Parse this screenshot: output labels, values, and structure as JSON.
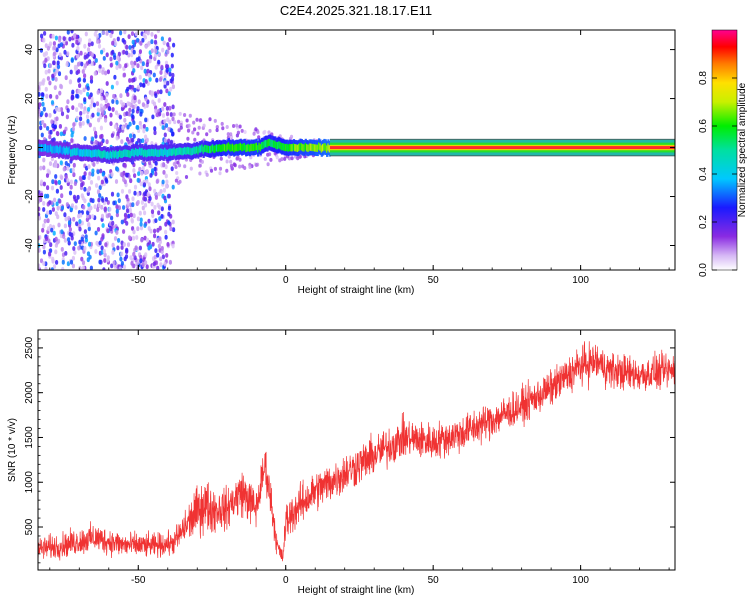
{
  "title": "C2E4.2025.321.18.17.E11",
  "chart_data": [
    {
      "type": "heatmap",
      "xlabel": "Height of straight line (km)",
      "ylabel": "Frequency (Hz)",
      "xlim": [
        -84,
        132
      ],
      "ylim": [
        -50,
        48
      ],
      "xticks": [
        -50,
        0,
        50,
        100
      ],
      "yticks": [
        -40,
        -20,
        0,
        20,
        40
      ],
      "colorbar": {
        "label": "Normalized spectral amplitude",
        "range": [
          0,
          1
        ],
        "ticks": [
          0.0,
          0.2,
          0.4,
          0.6,
          0.8
        ],
        "tick_labels": [
          "0.0",
          "0.2",
          "0.4",
          "0.6",
          "0.8"
        ]
      },
      "carrier": {
        "description_free": true,
        "x_start": 15,
        "x_end": 132,
        "frequency": 0,
        "amplitude": 0.82
      },
      "noisy_region": {
        "x_start": -84,
        "x_end": -38
      },
      "ridge": [
        {
          "x": -84,
          "f": 0,
          "a": 0.35
        },
        {
          "x": -70,
          "f": -2,
          "a": 0.4
        },
        {
          "x": -60,
          "f": -3,
          "a": 0.45
        },
        {
          "x": -50,
          "f": -2,
          "a": 0.45
        },
        {
          "x": -40,
          "f": -2,
          "a": 0.45
        },
        {
          "x": -30,
          "f": -1,
          "a": 0.5
        },
        {
          "x": -20,
          "f": 0,
          "a": 0.6
        },
        {
          "x": -10,
          "f": 0,
          "a": 0.62
        },
        {
          "x": -6,
          "f": 2,
          "a": 0.55
        },
        {
          "x": 0,
          "f": 0,
          "a": 0.6
        },
        {
          "x": 15,
          "f": 0,
          "a": 0.7
        }
      ]
    },
    {
      "type": "line",
      "xlabel": "Height of straight line (km)",
      "ylabel": "SNR (10 * v/v)",
      "xlim": [
        -84,
        132
      ],
      "ylim": [
        20,
        2700
      ],
      "xticks": [
        -50,
        0,
        50,
        100
      ],
      "yticks": [
        500,
        1000,
        1500,
        2000,
        2500
      ],
      "series": [
        {
          "color": "#f03232",
          "x": [
            -84,
            -75,
            -65,
            -55,
            -45,
            -38,
            -33,
            -28,
            -25,
            -20,
            -15,
            -10,
            -7,
            -5,
            -3,
            -1,
            0,
            2,
            5,
            10,
            20,
            30,
            40,
            50,
            60,
            70,
            80,
            90,
            100,
            105,
            110,
            120,
            132
          ],
          "mean": [
            250,
            300,
            380,
            300,
            290,
            320,
            550,
            750,
            700,
            700,
            900,
            700,
            1200,
            800,
            300,
            150,
            550,
            650,
            750,
            900,
            1100,
            1300,
            1500,
            1450,
            1550,
            1700,
            1850,
            2050,
            2300,
            2350,
            2250,
            2200,
            2250
          ],
          "spread": [
            150,
            160,
            180,
            160,
            150,
            150,
            250,
            350,
            300,
            250,
            300,
            250,
            250,
            250,
            150,
            80,
            250,
            250,
            250,
            250,
            250,
            250,
            250,
            230,
            230,
            230,
            220,
            220,
            250,
            250,
            230,
            220,
            220
          ]
        }
      ]
    }
  ]
}
